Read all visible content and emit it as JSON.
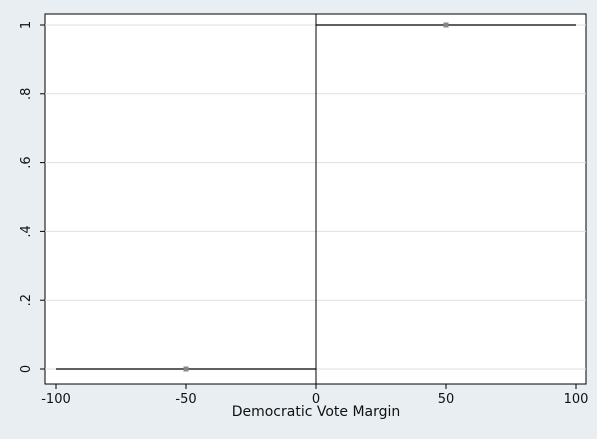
{
  "chart_data": {
    "type": "line",
    "title": "",
    "xlabel": "Democratic Vote Margin",
    "ylabel": "",
    "xlim": [
      -100,
      100
    ],
    "ylim": [
      0,
      1
    ],
    "x_ticks": [
      -100,
      -50,
      0,
      50,
      100
    ],
    "x_tick_labels": [
      "-100",
      "-50",
      "0",
      "50",
      "100"
    ],
    "y_ticks": [
      0,
      0.2,
      0.4,
      0.6,
      0.8,
      1
    ],
    "y_tick_labels": [
      "0",
      ".2",
      ".4",
      ".6",
      ".8",
      "1"
    ],
    "grid": "horizontal",
    "legend": "none",
    "series": [
      {
        "x": [
          -100,
          0
        ],
        "y": [
          0,
          0
        ]
      },
      {
        "x": [
          0,
          100
        ],
        "y": [
          1,
          1
        ]
      }
    ],
    "points": [
      {
        "x": -50,
        "y": 0
      },
      {
        "x": 50,
        "y": 1
      }
    ],
    "vertical_line": {
      "x": 0
    },
    "colors": {
      "background": "#e8eef2",
      "plot_background": "#ffffff",
      "line": "#000000",
      "point": "#888888",
      "grid": "#d9e2e8"
    }
  }
}
